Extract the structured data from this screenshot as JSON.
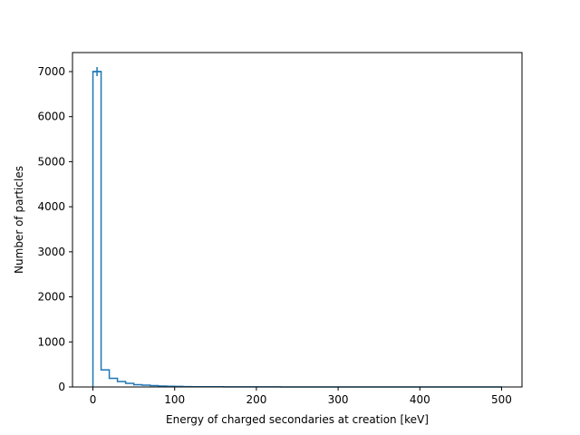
{
  "chart_data": {
    "type": "histogram",
    "title": "",
    "xlabel": "Energy of charged secondaries at creation [keV]",
    "ylabel": "Number of particles",
    "xlim": [
      -25,
      525
    ],
    "ylim": [
      0,
      7000
    ],
    "xticks": [
      0,
      100,
      200,
      300,
      400,
      500
    ],
    "yticks": [
      0,
      1000,
      2000,
      3000,
      4000,
      5000,
      6000,
      7000
    ],
    "grid": false,
    "legend": "none",
    "bin_edges": [
      0,
      10,
      20,
      30,
      40,
      50,
      60,
      70,
      80,
      90,
      100,
      110,
      120,
      130,
      140,
      150,
      160,
      170,
      180,
      190,
      200,
      210,
      220,
      230,
      240,
      250,
      260,
      270,
      280,
      290,
      300,
      310,
      320,
      330,
      340,
      350,
      360,
      370,
      380,
      390,
      400,
      410,
      420,
      430,
      440,
      450,
      460,
      470,
      480,
      490,
      500
    ],
    "counts": [
      7000,
      380,
      190,
      120,
      80,
      50,
      40,
      30,
      20,
      15,
      12,
      8,
      6,
      5,
      4,
      4,
      3,
      3,
      2,
      2,
      2,
      2,
      2,
      1,
      1,
      1,
      1,
      1,
      1,
      1,
      1,
      1,
      1,
      1,
      1,
      1,
      1,
      1,
      1,
      1,
      1,
      1,
      1,
      1,
      1,
      1,
      1,
      1,
      1,
      1
    ],
    "marker": {
      "x": 5,
      "y": 7000
    },
    "color": "#1f77b4"
  }
}
